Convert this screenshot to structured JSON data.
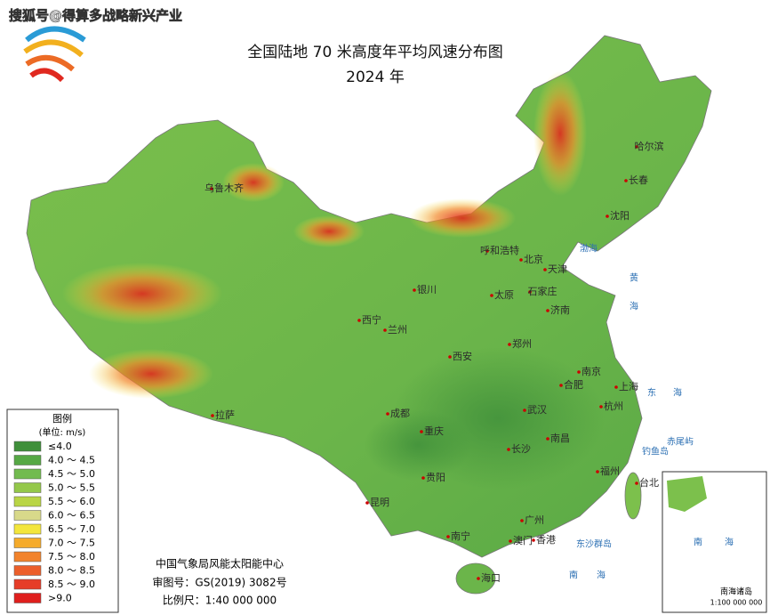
{
  "header": {
    "watermark": "搜狐号@得算多战略新兴产业",
    "title": "全国陆地 70 米高度年平均风速分布图",
    "year": "2024 年"
  },
  "legend": {
    "title": "图例",
    "unit": "(单位: m/s)",
    "items": [
      {
        "label": "≤4.0",
        "color": "#3f8f3a"
      },
      {
        "label": "4.0 ～ 4.5",
        "color": "#56a845"
      },
      {
        "label": "4.5 ～ 5.0",
        "color": "#72bb4f"
      },
      {
        "label": "5.0 ～ 5.5",
        "color": "#94c84a"
      },
      {
        "label": "5.5 ～ 6.0",
        "color": "#b9d545"
      },
      {
        "label": "6.0 ～ 6.5",
        "color": "#d8d98a"
      },
      {
        "label": "6.5 ～ 7.0",
        "color": "#f3e63c"
      },
      {
        "label": "7.0 ～ 7.5",
        "color": "#f5ab2b"
      },
      {
        "label": "7.5 ～ 8.0",
        "color": "#f2832c"
      },
      {
        "label": "8.0 ～ 8.5",
        "color": "#ec5f2b"
      },
      {
        "label": "8.5 ～ 9.0",
        "color": "#e63d28"
      },
      {
        "label": ">9.0",
        "color": "#df1f1d"
      }
    ]
  },
  "cities": [
    "乌鲁木齐",
    "哈尔滨",
    "长春",
    "沈阳",
    "呼和浩特",
    "北京",
    "天津",
    "银川",
    "太原",
    "石家庄",
    "济南",
    "西宁",
    "兰州",
    "郑州",
    "西安",
    "南京",
    "合肥",
    "上海",
    "拉萨",
    "成都",
    "武汉",
    "杭州",
    "重庆",
    "长沙",
    "南昌",
    "福州",
    "贵阳",
    "昆明",
    "台北",
    "广州",
    "南宁",
    "澳门",
    "香港",
    "海口"
  ],
  "seas": [
    "渤海",
    "黄",
    "海",
    "东",
    "海",
    "南",
    "海",
    "钓鱼岛",
    "赤尾屿",
    "东沙群岛"
  ],
  "inset": {
    "title": "南海诸岛",
    "scale": "1:100 000 000",
    "sea1": "南",
    "sea2": "海"
  },
  "footer": {
    "org": "中国气象局风能太阳能中心",
    "approval": "审图号：GS(2019) 3082号",
    "scale": "比例尺：1:40 000 000"
  }
}
